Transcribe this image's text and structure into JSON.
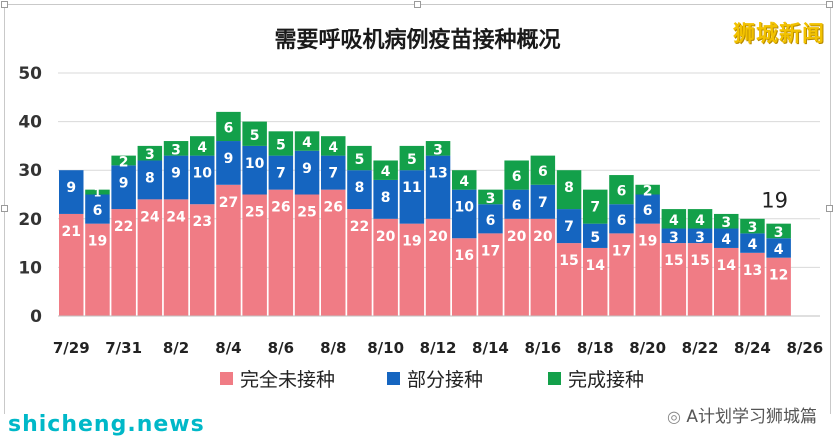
{
  "header": {
    "title": "需要呼吸机病例疫苗接种概况",
    "brand": "狮城新闻"
  },
  "footer": {
    "site": "shicheng.news",
    "wechat": "A计划学习狮城篇"
  },
  "chart_data": {
    "type": "bar",
    "stacked": true,
    "categories": [
      "7/29",
      "7/30",
      "7/31",
      "8/1",
      "8/2",
      "8/3",
      "8/4",
      "8/5",
      "8/6",
      "8/7",
      "8/8",
      "8/9",
      "8/10",
      "8/11",
      "8/12",
      "8/13",
      "8/14",
      "8/15",
      "8/16",
      "8/17",
      "8/18",
      "8/19",
      "8/20",
      "8/21",
      "8/22",
      "8/23",
      "8/24",
      "8/25"
    ],
    "tick_labels": [
      "7/29",
      "7/31",
      "8/2",
      "8/4",
      "8/6",
      "8/8",
      "8/10",
      "8/12",
      "8/14",
      "8/16",
      "8/18",
      "8/20",
      "8/22",
      "8/24",
      "8/26"
    ],
    "series": [
      {
        "name": "完全未接种",
        "color": "#f07c85",
        "values": [
          21,
          19,
          22,
          24,
          24,
          23,
          27,
          25,
          26,
          25,
          26,
          22,
          20,
          19,
          20,
          16,
          17,
          20,
          20,
          15,
          14,
          17,
          19,
          15,
          15,
          14,
          13,
          12
        ]
      },
      {
        "name": "部分接种",
        "color": "#1565c0",
        "values": [
          9,
          6,
          9,
          8,
          9,
          10,
          9,
          10,
          7,
          9,
          7,
          8,
          8,
          11,
          13,
          10,
          6,
          6,
          7,
          7,
          5,
          6,
          6,
          3,
          3,
          4,
          4,
          4
        ]
      },
      {
        "name": "完成接种",
        "color": "#13a04a",
        "values": [
          0,
          1,
          2,
          3,
          3,
          4,
          6,
          5,
          5,
          4,
          4,
          5,
          4,
          5,
          3,
          4,
          3,
          6,
          6,
          8,
          7,
          6,
          2,
          4,
          4,
          3,
          3,
          3
        ]
      }
    ],
    "value_label_colors": [
      "#ffffff",
      "#ffffff",
      "#ffffff"
    ],
    "annotation": {
      "text": "19",
      "category": "8/25"
    },
    "ylim": [
      0,
      50
    ],
    "yticks": [
      0,
      10,
      20,
      30,
      40,
      50
    ],
    "grid": true,
    "legend": "bottom"
  }
}
